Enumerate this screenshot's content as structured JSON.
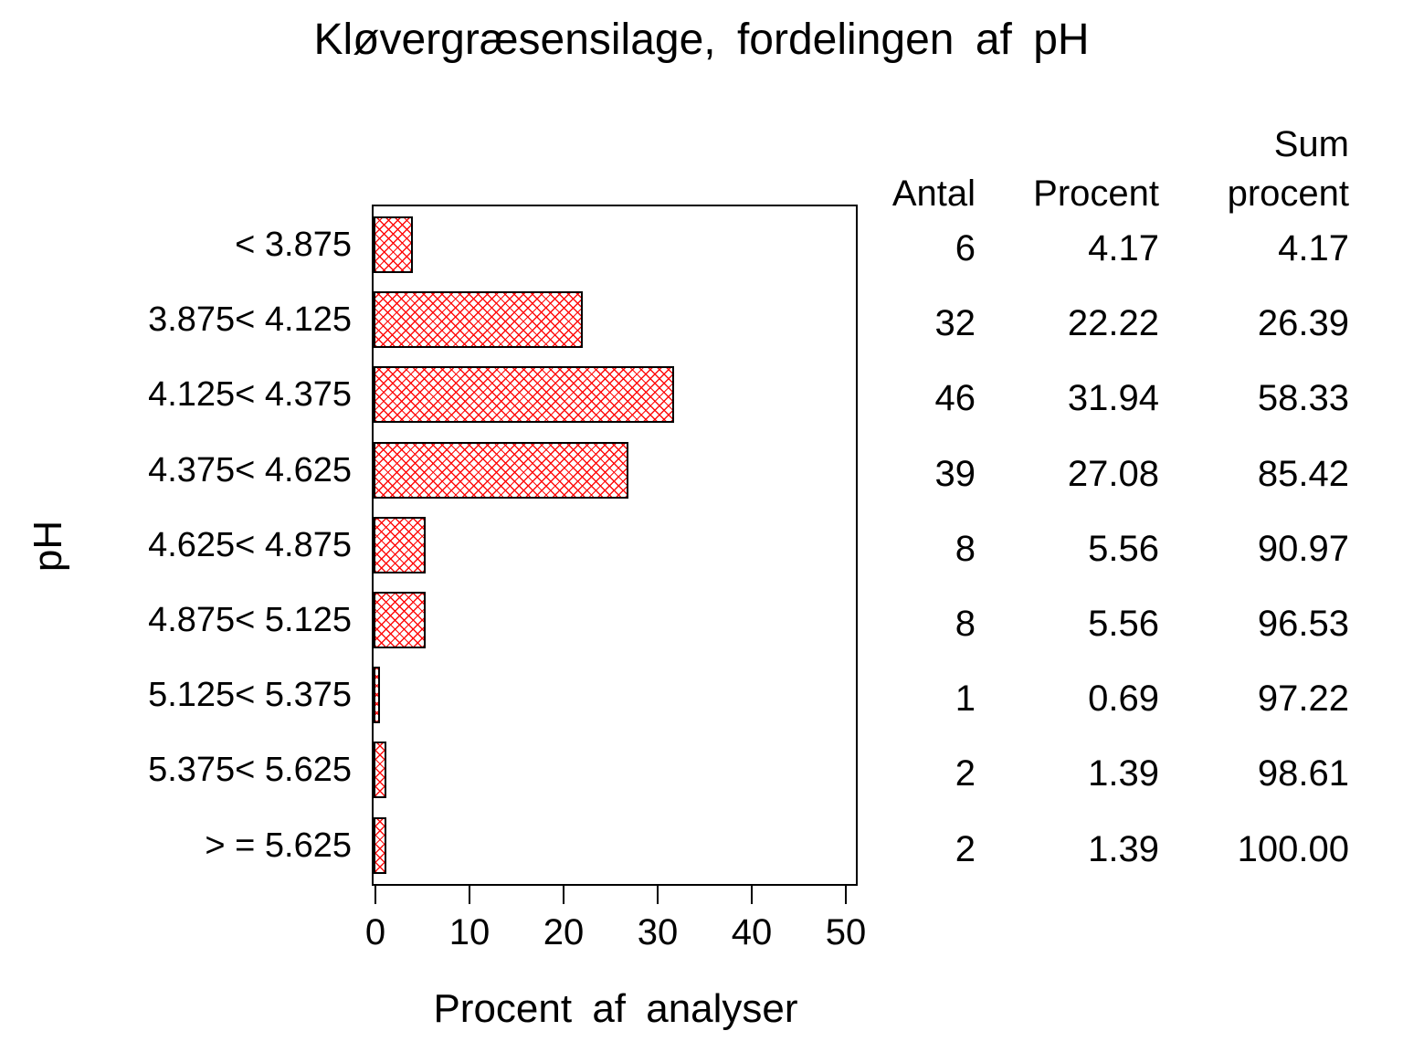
{
  "title": "Kløvergræsensilage, fordelingen af pH",
  "chart_data": {
    "type": "bar",
    "orientation": "horizontal",
    "title": "Kløvergræsensilage, fordelingen af pH",
    "categories": [
      "< 3.875",
      "3.875< 4.125",
      "4.125< 4.375",
      "4.375< 4.625",
      "4.625< 4.875",
      "4.875< 5.125",
      "5.125< 5.375",
      "5.375< 5.625",
      "> = 5.625"
    ],
    "values": [
      4.17,
      22.22,
      31.94,
      27.08,
      5.56,
      5.56,
      0.69,
      1.39,
      1.39
    ],
    "counts": [
      6,
      32,
      46,
      39,
      8,
      8,
      1,
      2,
      2
    ],
    "cumulative_percent": [
      4.17,
      26.39,
      58.33,
      85.42,
      90.97,
      96.53,
      97.22,
      98.61,
      100.0
    ],
    "xlabel": "Procent af analyser",
    "ylabel": "pH",
    "xlim": [
      0,
      51.5
    ],
    "xticks": [
      0,
      10,
      20,
      30,
      40,
      50
    ],
    "grid": "off",
    "bar_fill_color": "#ff0000",
    "bar_border_color": "#000000",
    "bar_pattern": "diagonal-crosshatch",
    "table": {
      "col_headers": [
        [
          "",
          "Antal"
        ],
        [
          "",
          "Procent"
        ],
        [
          "Sum",
          "procent"
        ]
      ],
      "rows": [
        [
          "6",
          "4.17",
          "4.17"
        ],
        [
          "32",
          "22.22",
          "26.39"
        ],
        [
          "46",
          "31.94",
          "58.33"
        ],
        [
          "39",
          "27.08",
          "85.42"
        ],
        [
          "8",
          "5.56",
          "90.97"
        ],
        [
          "8",
          "5.56",
          "96.53"
        ],
        [
          "1",
          "0.69",
          "97.22"
        ],
        [
          "2",
          "1.39",
          "98.61"
        ],
        [
          "2",
          "1.39",
          "100.00"
        ]
      ]
    }
  }
}
